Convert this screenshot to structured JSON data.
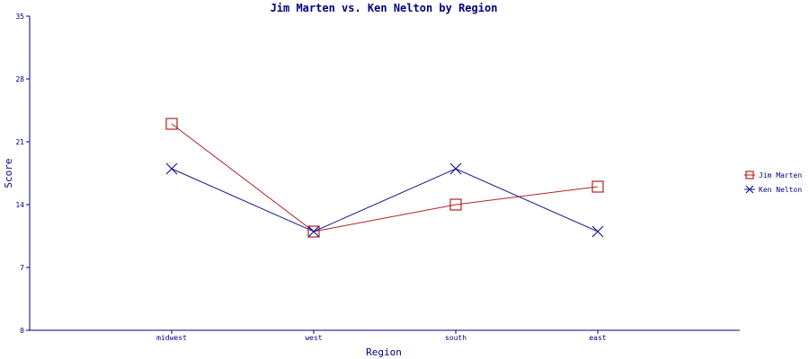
{
  "chart_data": {
    "type": "line",
    "title": "Jim Marten vs. Ken Nelton by Region",
    "xlabel": "Region",
    "ylabel": "Score",
    "categories": [
      "midwest",
      "west",
      "south",
      "east"
    ],
    "ylim": [
      0,
      35
    ],
    "yticks": [
      0,
      7,
      14,
      21,
      28,
      35
    ],
    "grid": false,
    "legend": "right",
    "series": [
      {
        "name": "Jim Marten",
        "values": [
          23,
          11,
          14,
          16
        ],
        "color": "#b22222",
        "marker": "square"
      },
      {
        "name": "Ken Nelton",
        "values": [
          18,
          11,
          18,
          11
        ],
        "color": "#1a1a8c",
        "marker": "x"
      }
    ],
    "colors": {
      "title": "#000080",
      "axis": "#000080",
      "text": "#000080"
    }
  }
}
